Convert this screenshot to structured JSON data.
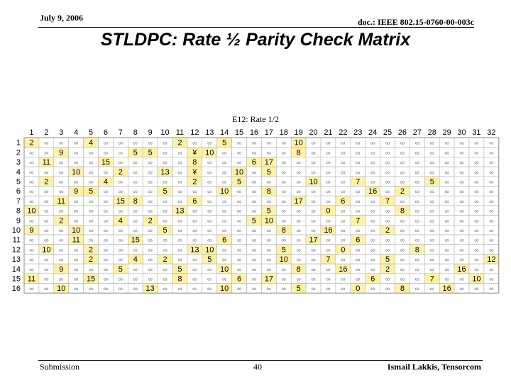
{
  "header": {
    "date": "July 9, 2006",
    "doc": "doc.: IEEE 802.15-0760-00-003c"
  },
  "title": "STLDPC: Rate ½ Parity Check Matrix",
  "table": {
    "caption": "E12: Rate 1/2",
    "empty_symbol": "∞",
    "special_symbol": "¥",
    "columns": [
      1,
      2,
      3,
      4,
      5,
      6,
      7,
      8,
      9,
      10,
      11,
      12,
      13,
      14,
      15,
      16,
      17,
      18,
      19,
      20,
      21,
      22,
      23,
      24,
      25,
      26,
      27,
      28,
      29,
      30,
      31,
      32
    ],
    "colors": {
      "highlight": "#fff2a6",
      "plain": "#ffffff",
      "grid": "#b4b4b4",
      "empty_glyph": "#7a7a7a"
    },
    "rows": [
      {
        "label": "1",
        "cells": {
          "1": "2",
          "5": "4",
          "11": "2",
          "14": "5",
          "19": "10"
        }
      },
      {
        "label": "2",
        "cells": {
          "3": "9",
          "8": "5",
          "9": "5",
          "12": "¥",
          "13": "10",
          "19": "8"
        }
      },
      {
        "label": "3",
        "cells": {
          "2": "11",
          "6": "15",
          "12": "8",
          "16": "6",
          "17": "17"
        }
      },
      {
        "label": "4",
        "cells": {
          "4": "10",
          "7": "2",
          "10": "13",
          "12": "¥",
          "15": "10",
          "17": "5"
        }
      },
      {
        "label": "5",
        "cells": {
          "2": "2",
          "6": "4",
          "12": "2",
          "15": "5",
          "20": "10",
          "23": "7",
          "28": "5"
        }
      },
      {
        "label": "6",
        "cells": {
          "4": "9",
          "5": "5",
          "10": "5",
          "14": "10",
          "17": "8",
          "24": "16",
          "26": "2"
        }
      },
      {
        "label": "7",
        "cells": {
          "3": "11",
          "7": "15",
          "8": "8",
          "12": "6",
          "19": "17",
          "22": "6",
          "25": "7"
        }
      },
      {
        "label": "8",
        "cells": {
          "1": "10",
          "11": "13",
          "17": "5",
          "21": "0",
          "26": "8"
        }
      },
      {
        "label": "9",
        "cells": {
          "3": "2",
          "7": "4",
          "9": "2",
          "16": "5",
          "17": "10",
          "23": "7"
        }
      },
      {
        "label": "10",
        "cells": {
          "1": "9",
          "4": "10",
          "10": "5",
          "18": "8",
          "21": "16",
          "25": "2"
        }
      },
      {
        "label": "11",
        "cells": {
          "4": "11",
          "8": "15",
          "14": "6",
          "20": "17",
          "23": "6"
        }
      },
      {
        "label": "12",
        "cells": {
          "2": "10",
          "5": "2",
          "12": "13",
          "13": "10",
          "18": "5",
          "22": "0",
          "27": "8"
        }
      },
      {
        "label": "13",
        "cells": {
          "5": "2",
          "8": "4",
          "10": "2",
          "13": "5",
          "18": "10",
          "21": "7",
          "25": "5",
          "32": "12"
        }
      },
      {
        "label": "14",
        "cells": {
          "3": "9",
          "7": "5",
          "11": "5",
          "14": "10",
          "19": "8",
          "22": "16",
          "25": "2",
          "30": "16"
        }
      },
      {
        "label": "15",
        "cells": {
          "1": "11",
          "5": "15",
          "11": "8",
          "15": "6",
          "17": "17",
          "24": "6",
          "28": "7",
          "31": "10"
        }
      },
      {
        "label": "16",
        "cells": {
          "3": "10",
          "9": "13",
          "14": "10",
          "19": "5",
          "23": "0",
          "26": "8",
          "29": "16"
        }
      }
    ]
  },
  "footer": {
    "left": "Submission",
    "page": "40",
    "right": "Ismail Lakkis, Tensorcom"
  }
}
